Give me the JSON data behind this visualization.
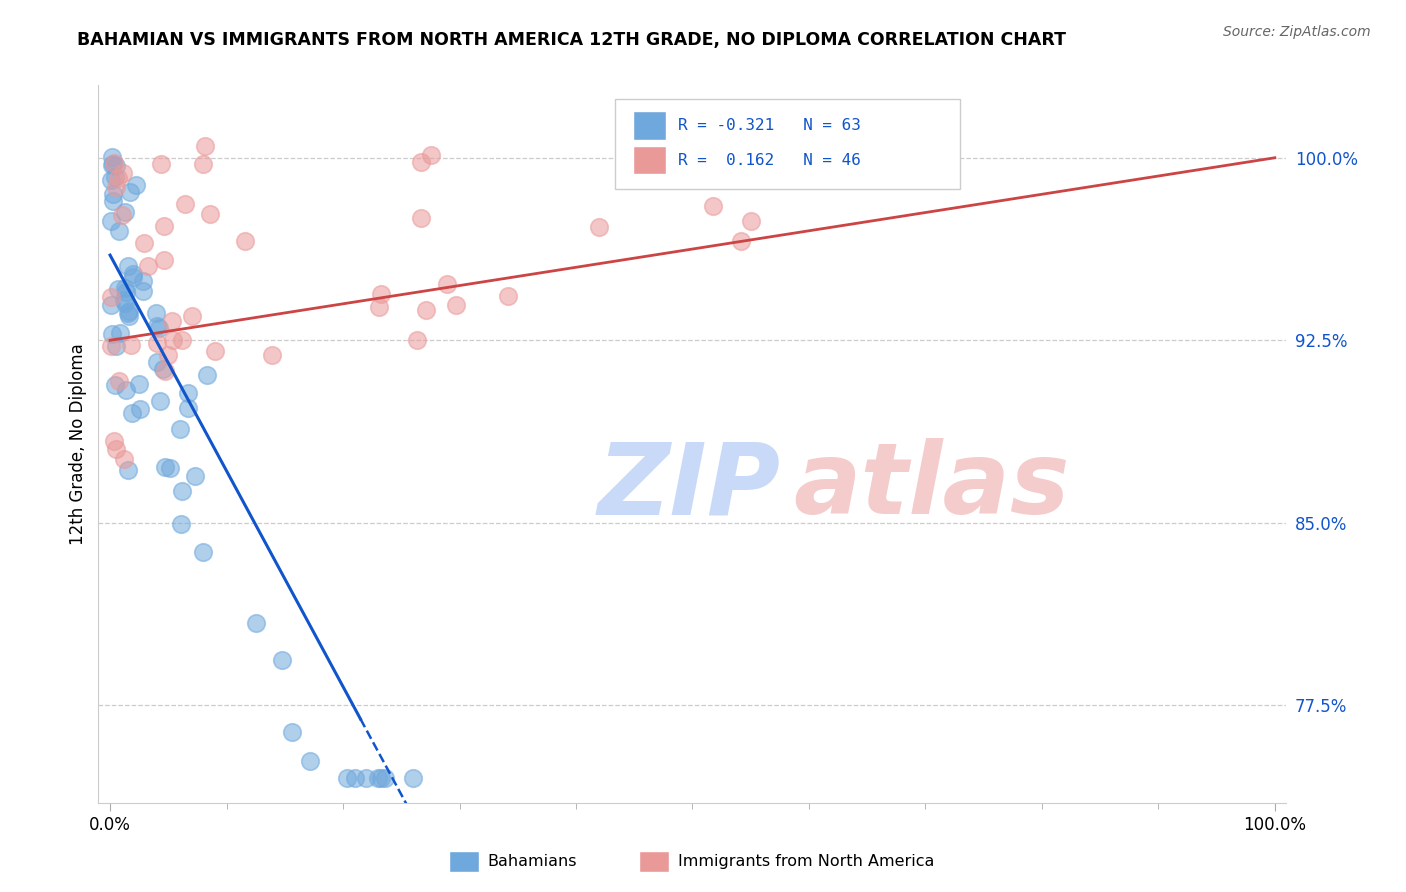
{
  "title": "BAHAMIAN VS IMMIGRANTS FROM NORTH AMERICA 12TH GRADE, NO DIPLOMA CORRELATION CHART",
  "source": "Source: ZipAtlas.com",
  "ylabel": "12th Grade, No Diploma",
  "xlim": [
    -0.01,
    1.01
  ],
  "ylim": [
    0.735,
    1.03
  ],
  "yticks_right": [
    0.775,
    0.85,
    0.925,
    1.0
  ],
  "ytick_right_labels": [
    "77.5%",
    "85.0%",
    "92.5%",
    "100.0%"
  ],
  "xtick_labels": [
    "0.0%",
    "100.0%"
  ],
  "blue_R": -0.321,
  "blue_N": 63,
  "pink_R": 0.162,
  "pink_N": 46,
  "blue_color": "#6fa8dc",
  "pink_color": "#ea9999",
  "blue_line_color": "#1155cc",
  "pink_line_color": "#cc4444",
  "legend_text_color": "#1155cc",
  "right_axis_color": "#1155cc",
  "watermark_zip_color": "#c9daf8",
  "watermark_atlas_color": "#f4cccc"
}
